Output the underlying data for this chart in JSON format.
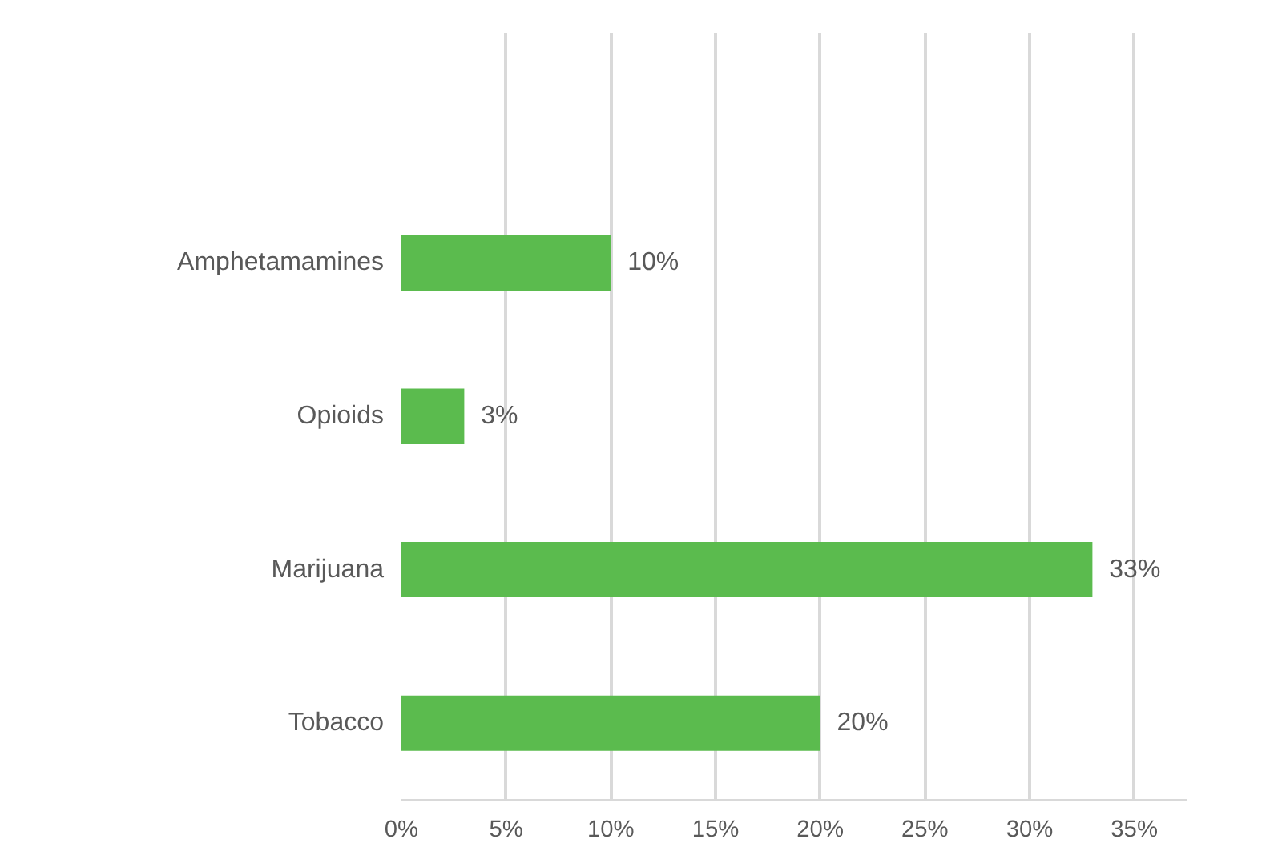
{
  "chart_data": {
    "type": "bar",
    "orientation": "horizontal",
    "categories": [
      "Amphetamamines",
      "Opioids",
      "Marijuana",
      "Tobacco"
    ],
    "values": [
      10,
      3,
      33,
      20
    ],
    "value_labels": [
      "10%",
      "3%",
      "33%",
      "20%"
    ],
    "color": "#5bbb4e",
    "xlim": [
      0,
      37.5
    ],
    "xticks": [
      {
        "value": 0,
        "label": "0%"
      },
      {
        "value": 5,
        "label": "5%"
      },
      {
        "value": 10,
        "label": "10%"
      },
      {
        "value": 15,
        "label": "15%"
      },
      {
        "value": 20,
        "label": "20%"
      },
      {
        "value": 25,
        "label": "25%"
      },
      {
        "value": 30,
        "label": "30%"
      },
      {
        "value": 35,
        "label": "35%"
      }
    ],
    "grid": "x"
  }
}
